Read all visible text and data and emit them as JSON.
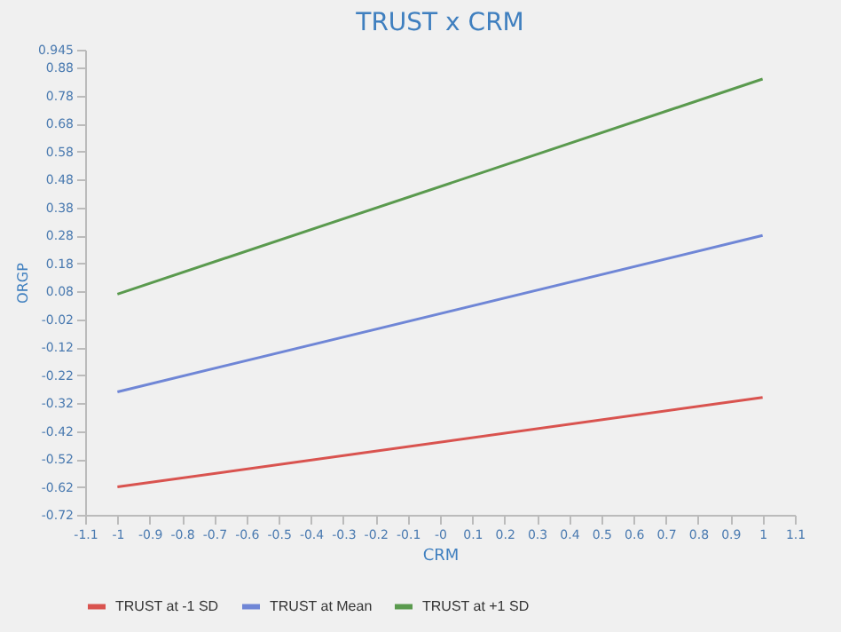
{
  "chart_data": {
    "type": "line",
    "title": "TRUST x CRM",
    "xlabel": "CRM",
    "ylabel": "ORGP",
    "x": [
      -1,
      1
    ],
    "series": [
      {
        "name": "TRUST at -1 SD",
        "color": "#d9534f",
        "values": [
          -0.62,
          -0.3
        ]
      },
      {
        "name": "TRUST at Mean",
        "color": "#6f86d6",
        "values": [
          -0.28,
          0.28
        ]
      },
      {
        "name": "TRUST at +1 SD",
        "color": "#5a9a4e",
        "values": [
          0.07,
          0.84
        ]
      }
    ],
    "xlim": [
      -1.1,
      1.1
    ],
    "xticks": [
      -1.1,
      -1,
      -0.9,
      -0.8,
      -0.7,
      -0.6,
      -0.5,
      -0.4,
      -0.3,
      -0.2,
      -0.1,
      {
        "value": 0,
        "label": "-0"
      },
      0.1,
      0.2,
      0.3,
      0.4,
      0.5,
      0.6,
      0.7,
      0.8,
      0.9,
      1,
      1.1
    ],
    "ylim": [
      -0.72,
      0.945
    ],
    "yticks": [
      -0.72,
      -0.62,
      -0.52,
      -0.42,
      -0.32,
      -0.22,
      -0.12,
      -0.02,
      0.08,
      0.18,
      0.28,
      0.38,
      0.48,
      0.58,
      0.68,
      0.78,
      0.88,
      0.945
    ],
    "grid": false,
    "legend": "bottom",
    "marker": "none",
    "line_style": "solid"
  }
}
